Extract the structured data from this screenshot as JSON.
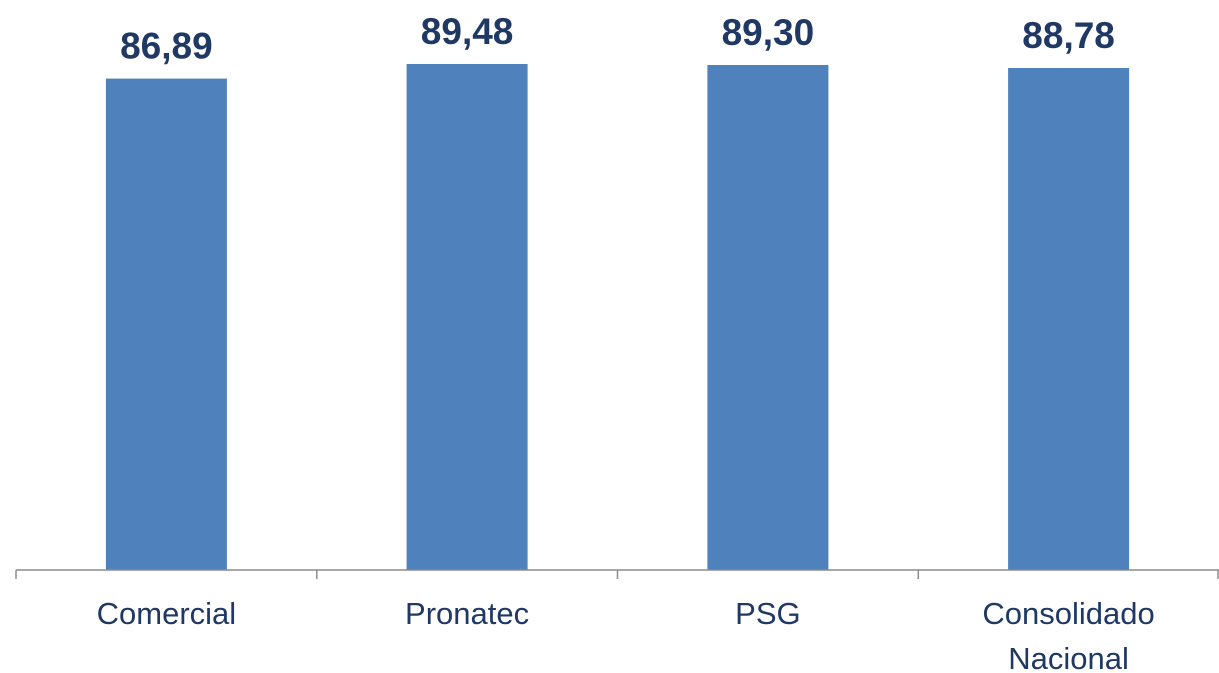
{
  "chart_data": {
    "type": "bar",
    "categories": [
      [
        "Comercial"
      ],
      [
        "Pronatec"
      ],
      [
        "PSG"
      ],
      [
        "Consolidado",
        "Nacional"
      ]
    ],
    "values": [
      86.89,
      89.48,
      89.3,
      88.78
    ],
    "value_labels": [
      "86,89",
      "89,48",
      "89,30",
      "88,78"
    ],
    "title": "",
    "xlabel": "",
    "ylabel": "",
    "y_axis_visible": false,
    "grid": false,
    "legend": "none",
    "colors": {
      "bar": "#4F81BD",
      "value_label": "#1F3864",
      "category_label": "#1F3864",
      "axis": "#8C8C8C"
    }
  }
}
